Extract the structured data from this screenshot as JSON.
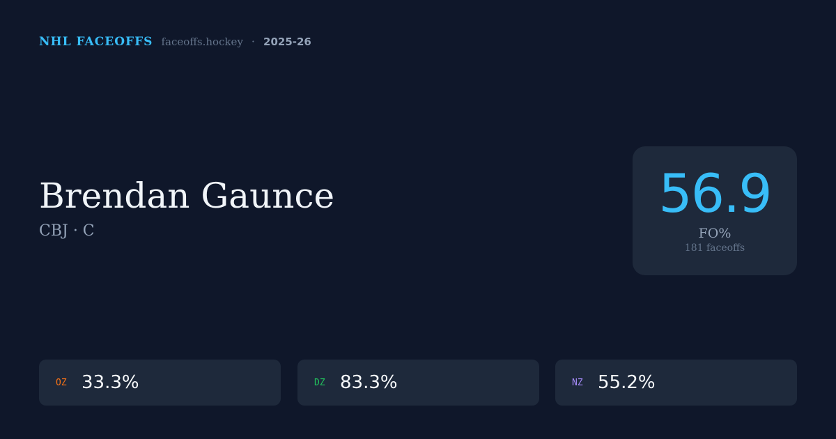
{
  "header": {
    "brand": "NHL FACEOFFS",
    "site": "faceoffs.hockey",
    "separator": "·",
    "season": "2025-26"
  },
  "player": {
    "name": "Brendan Gaunce",
    "subtitle": "CBJ · C"
  },
  "summary": {
    "value": "56.9",
    "label": "FO%",
    "count": "181 faceoffs",
    "accent": "#38bdf8"
  },
  "zones": [
    {
      "label": "OZ",
      "value": "33.3%",
      "color": "#f97316"
    },
    {
      "label": "DZ",
      "value": "83.3%",
      "color": "#22c55e"
    },
    {
      "label": "NZ",
      "value": "55.2%",
      "color": "#a78bfa"
    }
  ]
}
